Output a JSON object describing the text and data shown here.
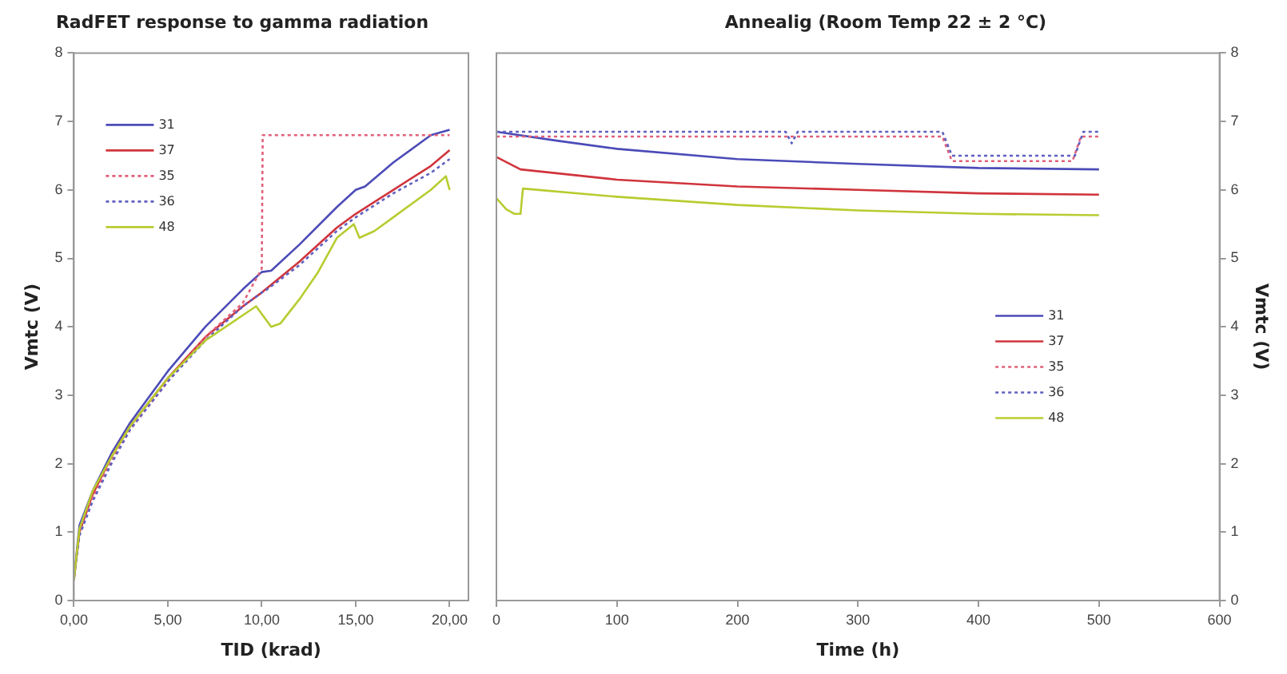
{
  "chart_data": [
    {
      "type": "line",
      "title": "RadFET response to gamma radiation",
      "xlabel": "TID (krad)",
      "ylabel": "Vmtc (V)",
      "xlim": [
        0,
        21
      ],
      "xticks": [
        {
          "value": 0,
          "label": "0,00"
        },
        {
          "value": 5,
          "label": "5,00"
        },
        {
          "value": 10,
          "label": "10,00"
        },
        {
          "value": 15,
          "label": "15,00"
        },
        {
          "value": 20,
          "label": "20,00"
        }
      ],
      "ylim": [
        0,
        8
      ],
      "yticks": [
        0,
        1,
        2,
        3,
        4,
        5,
        6,
        7,
        8
      ],
      "grid": false,
      "legend": "top left",
      "marker": "none",
      "series": [
        {
          "name": "31",
          "color": "#4b4bb8",
          "line_style": "solid",
          "x": [
            0,
            0.3,
            1,
            2,
            3,
            5,
            7,
            9,
            10,
            10.5,
            12,
            14,
            15,
            15.5,
            17,
            19,
            20
          ],
          "values": [
            0.3,
            1.1,
            1.6,
            2.15,
            2.6,
            3.35,
            4.0,
            4.55,
            4.8,
            4.82,
            5.2,
            5.75,
            6.0,
            6.05,
            6.4,
            6.8,
            6.88
          ]
        },
        {
          "name": "37",
          "color": "#d0343c",
          "line_style": "solid",
          "x": [
            0,
            0.3,
            1,
            2,
            3,
            5,
            7,
            9,
            10,
            12,
            14,
            15,
            17,
            19,
            20
          ],
          "values": [
            0.3,
            1.0,
            1.55,
            2.1,
            2.55,
            3.25,
            3.85,
            4.3,
            4.5,
            4.95,
            5.45,
            5.65,
            6.0,
            6.35,
            6.58
          ]
        },
        {
          "name": "35",
          "color": "#e0607a",
          "line_style": "dotted",
          "x": [
            0,
            0.3,
            1,
            2,
            3,
            5,
            7,
            9,
            10,
            10.05,
            20
          ],
          "values": [
            0.3,
            1.0,
            1.5,
            2.05,
            2.5,
            3.2,
            3.85,
            4.35,
            4.85,
            6.8,
            6.8
          ]
        },
        {
          "name": "36",
          "color": "#6060c0",
          "line_style": "dotted",
          "x": [
            0,
            0.3,
            1,
            2,
            3,
            5,
            7,
            9,
            10,
            10.3,
            12,
            14,
            15,
            17,
            19,
            20
          ],
          "values": [
            0.3,
            0.95,
            1.45,
            2.0,
            2.5,
            3.2,
            3.8,
            4.3,
            4.5,
            4.55,
            4.9,
            5.4,
            5.6,
            5.95,
            6.25,
            6.45
          ]
        },
        {
          "name": "48",
          "color": "#b8cc30",
          "line_style": "solid",
          "x": [
            0,
            0.3,
            1,
            2,
            3,
            5,
            7,
            9.7,
            10.5,
            11,
            12,
            13,
            14,
            14.9,
            15.2,
            16,
            17,
            19,
            19.8,
            20
          ],
          "values": [
            0.3,
            1.05,
            1.6,
            2.1,
            2.55,
            3.25,
            3.8,
            4.3,
            4.0,
            4.05,
            4.4,
            4.8,
            5.3,
            5.5,
            5.3,
            5.4,
            5.6,
            6.0,
            6.2,
            6.0
          ]
        }
      ]
    },
    {
      "type": "line",
      "title": "Annealig (Room Temp 22 ± 2 °C)",
      "xlabel": "Time (h)",
      "ylabel": "Vmtc (V)",
      "xlim": [
        0,
        600
      ],
      "xticks": [
        0,
        100,
        200,
        300,
        400,
        500,
        600
      ],
      "ylim": [
        0,
        8
      ],
      "yticks": [
        0,
        1,
        2,
        3,
        4,
        5,
        6,
        7,
        8
      ],
      "grid": false,
      "legend": "right",
      "marker": "none",
      "series": [
        {
          "name": "31",
          "color": "#4b4bb8",
          "line_style": "solid",
          "x": [
            0,
            50,
            100,
            200,
            300,
            400,
            500
          ],
          "values": [
            6.85,
            6.72,
            6.6,
            6.45,
            6.38,
            6.32,
            6.3
          ]
        },
        {
          "name": "37",
          "color": "#d0343c",
          "line_style": "solid",
          "x": [
            0,
            20,
            100,
            200,
            300,
            400,
            500
          ],
          "values": [
            6.48,
            6.3,
            6.15,
            6.05,
            6.0,
            5.95,
            5.93
          ]
        },
        {
          "name": "35",
          "color": "#e0607a",
          "line_style": "dotted",
          "x": [
            0,
            370,
            378,
            478,
            485,
            500
          ],
          "values": [
            6.78,
            6.78,
            6.42,
            6.42,
            6.78,
            6.78
          ]
        },
        {
          "name": "36",
          "color": "#6060c0",
          "line_style": "dotted",
          "x": [
            0,
            240,
            245,
            250,
            370,
            378,
            480,
            487,
            500
          ],
          "values": [
            6.85,
            6.85,
            6.68,
            6.85,
            6.85,
            6.5,
            6.5,
            6.85,
            6.85
          ]
        },
        {
          "name": "48",
          "color": "#b8cc30",
          "line_style": "solid",
          "x": [
            0,
            8,
            15,
            20,
            22,
            100,
            200,
            300,
            400,
            500
          ],
          "values": [
            5.88,
            5.72,
            5.65,
            5.65,
            6.02,
            5.9,
            5.78,
            5.7,
            5.65,
            5.63
          ]
        }
      ]
    }
  ]
}
